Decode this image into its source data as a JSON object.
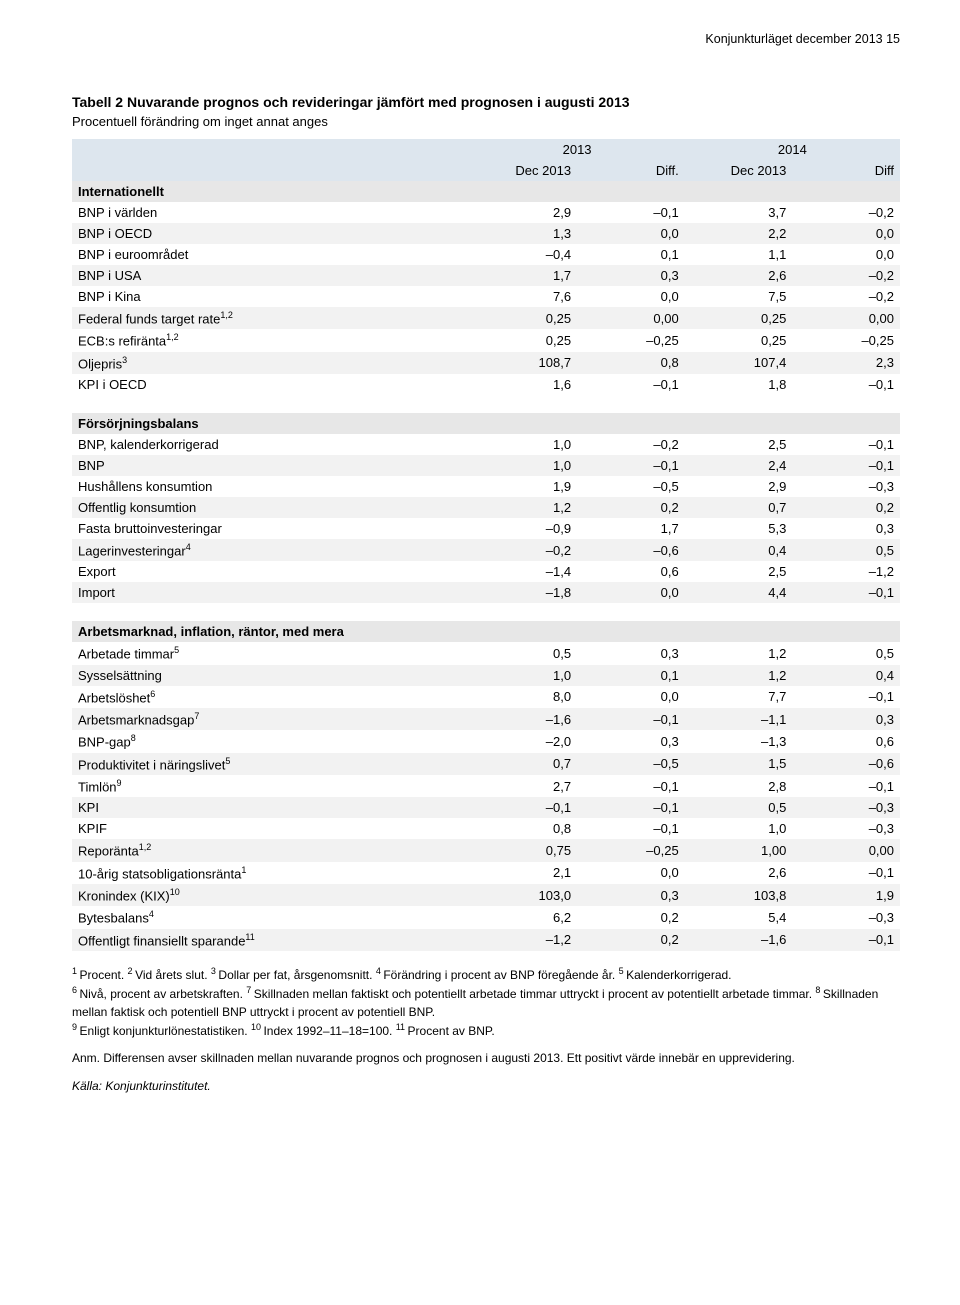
{
  "colors": {
    "header_band": "#dde6ee",
    "section_band": "#e7e7e7",
    "row_alt": "#f2f2f2",
    "text": "#000000",
    "background": "#ffffff"
  },
  "typography": {
    "base_family": "Verdana, Arial, sans-serif",
    "base_size_pt": 10,
    "title_size_pt": 11,
    "footnote_size_pt": 9
  },
  "table": {
    "type": "table",
    "col_widths_pct": [
      48,
      13,
      13,
      13,
      13
    ],
    "col_align": [
      "left",
      "right",
      "right",
      "right",
      "right"
    ]
  },
  "running_head": "Konjunkturläget december 2013   15",
  "title": "Tabell 2 Nuvarande prognos och revideringar jämfört med prognosen i augusti 2013",
  "subtitle": "Procentuell förändring om inget annat anges",
  "header": {
    "year1": "2013",
    "year2": "2014",
    "c1": "Dec 2013",
    "c2": "Diff.",
    "c3": "Dec 2013",
    "c4": "Diff"
  },
  "sections": [
    {
      "name": "Internationellt",
      "rows": [
        {
          "lbl": "BNP i världen",
          "sup": "",
          "v": [
            "2,9",
            "–0,1",
            "3,7",
            "–0,2"
          ]
        },
        {
          "lbl": "BNP i OECD",
          "sup": "",
          "v": [
            "1,3",
            "0,0",
            "2,2",
            "0,0"
          ]
        },
        {
          "lbl": "BNP i euroområdet",
          "sup": "",
          "v": [
            "–0,4",
            "0,1",
            "1,1",
            "0,0"
          ]
        },
        {
          "lbl": "BNP i USA",
          "sup": "",
          "v": [
            "1,7",
            "0,3",
            "2,6",
            "–0,2"
          ]
        },
        {
          "lbl": "BNP i Kina",
          "sup": "",
          "v": [
            "7,6",
            "0,0",
            "7,5",
            "–0,2"
          ]
        },
        {
          "lbl": "Federal funds target rate",
          "sup": "1,2",
          "v": [
            "0,25",
            "0,00",
            "0,25",
            "0,00"
          ]
        },
        {
          "lbl": "ECB:s refiränta",
          "sup": "1,2",
          "v": [
            "0,25",
            "–0,25",
            "0,25",
            "–0,25"
          ]
        },
        {
          "lbl": "Oljepris",
          "sup": "3",
          "v": [
            "108,7",
            "0,8",
            "107,4",
            "2,3"
          ]
        },
        {
          "lbl": "KPI i OECD",
          "sup": "",
          "v": [
            "1,6",
            "–0,1",
            "1,8",
            "–0,1"
          ]
        }
      ]
    },
    {
      "name": "Försörjningsbalans",
      "rows": [
        {
          "lbl": "BNP, kalenderkorrigerad",
          "sup": "",
          "v": [
            "1,0",
            "–0,2",
            "2,5",
            "–0,1"
          ]
        },
        {
          "lbl": "BNP",
          "sup": "",
          "v": [
            "1,0",
            "–0,1",
            "2,4",
            "–0,1"
          ]
        },
        {
          "lbl": "Hushållens konsumtion",
          "sup": "",
          "v": [
            "1,9",
            "–0,5",
            "2,9",
            "–0,3"
          ]
        },
        {
          "lbl": "Offentlig konsumtion",
          "sup": "",
          "v": [
            "1,2",
            "0,2",
            "0,7",
            "0,2"
          ]
        },
        {
          "lbl": "Fasta bruttoinvesteringar",
          "sup": "",
          "v": [
            "–0,9",
            "1,7",
            "5,3",
            "0,3"
          ]
        },
        {
          "lbl": "Lagerinvesteringar",
          "sup": "4",
          "v": [
            "–0,2",
            "–0,6",
            "0,4",
            "0,5"
          ]
        },
        {
          "lbl": "Export",
          "sup": "",
          "v": [
            "–1,4",
            "0,6",
            "2,5",
            "–1,2"
          ]
        },
        {
          "lbl": "Import",
          "sup": "",
          "v": [
            "–1,8",
            "0,0",
            "4,4",
            "–0,1"
          ]
        }
      ]
    },
    {
      "name": "Arbetsmarknad, inflation, räntor, med mera",
      "rows": [
        {
          "lbl": "Arbetade timmar",
          "sup": "5",
          "v": [
            "0,5",
            "0,3",
            "1,2",
            "0,5"
          ]
        },
        {
          "lbl": "Sysselsättning",
          "sup": "",
          "v": [
            "1,0",
            "0,1",
            "1,2",
            "0,4"
          ]
        },
        {
          "lbl": "Arbetslöshet",
          "sup": "6",
          "v": [
            "8,0",
            "0,0",
            "7,7",
            "–0,1"
          ]
        },
        {
          "lbl": "Arbetsmarknadsgap",
          "sup": "7",
          "v": [
            "–1,6",
            "–0,1",
            "–1,1",
            "0,3"
          ]
        },
        {
          "lbl": "BNP-gap",
          "sup": "8",
          "v": [
            "–2,0",
            "0,3",
            "–1,3",
            "0,6"
          ]
        },
        {
          "lbl": "Produktivitet i näringslivet",
          "sup": "5",
          "v": [
            "0,7",
            "–0,5",
            "1,5",
            "–0,6"
          ]
        },
        {
          "lbl": "Timlön",
          "sup": "9",
          "v": [
            "2,7",
            "–0,1",
            "2,8",
            "–0,1"
          ]
        },
        {
          "lbl": "KPI",
          "sup": "",
          "v": [
            "–0,1",
            "–0,1",
            "0,5",
            "–0,3"
          ]
        },
        {
          "lbl": "KPIF",
          "sup": "",
          "v": [
            "0,8",
            "–0,1",
            "1,0",
            "–0,3"
          ]
        },
        {
          "lbl": "Reporänta",
          "sup": "1,2",
          "v": [
            "0,75",
            "–0,25",
            "1,00",
            "0,00"
          ]
        },
        {
          "lbl": "10-årig statsobligationsränta",
          "sup": "1",
          "v": [
            "2,1",
            "0,0",
            "2,6",
            "–0,1"
          ]
        },
        {
          "lbl": "Kronindex (KIX)",
          "sup": "10",
          "v": [
            "103,0",
            "0,3",
            "103,8",
            "1,9"
          ]
        },
        {
          "lbl": "Bytesbalans",
          "sup": "4",
          "v": [
            "6,2",
            "0,2",
            "5,4",
            "–0,3"
          ]
        },
        {
          "lbl": "Offentligt finansiellt sparande",
          "sup": "11",
          "v": [
            "–1,2",
            "0,2",
            "–1,6",
            "–0,1"
          ]
        }
      ]
    }
  ],
  "footnotes": {
    "p1_1": "Procent. ",
    "p1_2": "Vid årets slut. ",
    "p1_3": "Dollar per fat, årsgenomsnitt. ",
    "p1_4": "Förändring i procent av BNP föregående år. ",
    "p1_5": "Kalenderkorrigerad.",
    "p1_6": "Nivå, procent av arbetskraften. ",
    "p1_7": "Skillnaden mellan faktiskt och potentiellt arbetade timmar uttryckt i procent av potentiellt arbetade timmar. ",
    "p1_8": "Skillnaden mellan faktisk och potentiell BNP uttryckt i procent av potentiell BNP.",
    "p1_9": "Enligt konjunkturlönestatistiken. ",
    "p1_10": "Index 1992–11–18=100. ",
    "p1_11": "Procent av BNP.",
    "anm": "Anm. Differensen avser skillnaden mellan nuvarande prognos och prognosen i augusti 2013. Ett positivt värde innebär en upprevidering.",
    "source": "Källa: Konjunkturinstitutet."
  }
}
